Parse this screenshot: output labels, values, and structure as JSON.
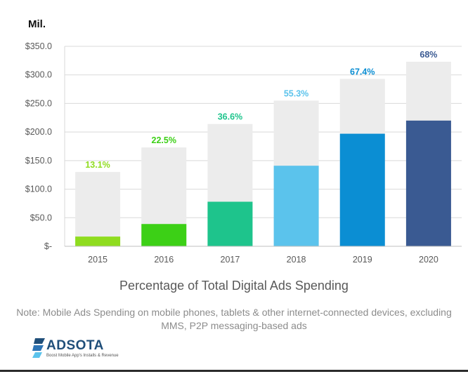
{
  "unit_label": "Mil.",
  "caption": "Percentage of Total Digital Ads Spending",
  "note": "Note: Mobile Ads Spending on mobile phones, tablets & other internet-connected devices, excluding MMS, P2P messaging-based ads",
  "logo": {
    "name": "ADSOTA",
    "tagline": "Boost Mobile App's Installs & Revenue"
  },
  "chart_data": {
    "type": "bar",
    "categories": [
      "2015",
      "2016",
      "2017",
      "2018",
      "2019",
      "2020"
    ],
    "series": [
      {
        "values": [
          130,
          173,
          214,
          255,
          293,
          323
        ]
      },
      {
        "values": [
          17,
          39,
          78,
          141,
          197,
          220
        ]
      }
    ],
    "percent_labels": [
      "13.1%",
      "22.5%",
      "36.6%",
      "55.3%",
      "67.4%",
      "68%"
    ],
    "bar_colors": [
      "#8fdc1f",
      "#3cd016",
      "#1ec48c",
      "#5bc3ec",
      "#0b8ed3",
      "#3a5a92"
    ],
    "label_colors": [
      "#8fdc1f",
      "#3cd016",
      "#1ec48c",
      "#5bc3ec",
      "#0b8ed3",
      "#3a5a92"
    ],
    "total_bar_color": "#ececec",
    "ylim": [
      0,
      350
    ],
    "yticks": [
      0,
      50,
      100,
      150,
      200,
      250,
      300,
      350
    ],
    "ytick_labels": [
      "$-",
      "$50.0",
      "$100.0",
      "$150.0",
      "$200.0",
      "$250.0",
      "$300.0",
      "$350.0"
    ],
    "grid": true,
    "title": "",
    "xlabel": "",
    "ylabel": ""
  }
}
